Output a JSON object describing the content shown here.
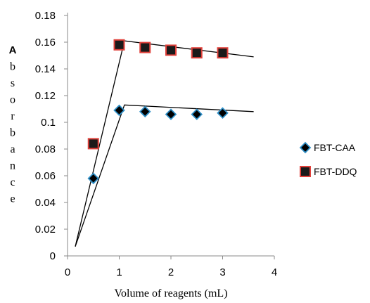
{
  "chart_data": {
    "type": "scatter",
    "xlabel": "Volume of reagents (mL)",
    "ylabel_letters": [
      "A",
      "b",
      "s",
      "o",
      "r",
      "b",
      "a",
      "n",
      "c",
      "e"
    ],
    "xlim": [
      0,
      4
    ],
    "ylim": [
      0,
      0.18
    ],
    "xticks": [
      "0",
      "1",
      "2",
      "3",
      "4"
    ],
    "yticks": [
      "0",
      "0.02",
      "0.04",
      "0.06",
      "0.08",
      "0.1",
      "0.12",
      "0.14",
      "0.16",
      "0.18"
    ],
    "legend_position": "right",
    "series": [
      {
        "name": "FBT-CAA",
        "marker": "diamond",
        "fill": "#000000",
        "stroke": "#2e8fc7",
        "x": [
          0.5,
          1.0,
          1.5,
          2.0,
          2.5,
          3.0
        ],
        "y": [
          0.058,
          0.109,
          0.108,
          0.106,
          0.106,
          0.107
        ]
      },
      {
        "name": "FBT-DDQ",
        "marker": "square",
        "fill": "#1a1a1a",
        "stroke": "#e0403a",
        "x": [
          0.5,
          1.0,
          1.5,
          2.0,
          2.5,
          3.0
        ],
        "y": [
          0.084,
          0.158,
          0.156,
          0.154,
          0.152,
          0.152
        ]
      }
    ],
    "trend_lines": [
      {
        "points": [
          [
            0.15,
            0.007
          ],
          [
            1.1,
            0.113
          ],
          [
            3.6,
            0.108
          ]
        ]
      },
      {
        "points": [
          [
            0.15,
            0.007
          ],
          [
            1.1,
            0.161
          ],
          [
            3.6,
            0.149
          ]
        ]
      }
    ]
  }
}
